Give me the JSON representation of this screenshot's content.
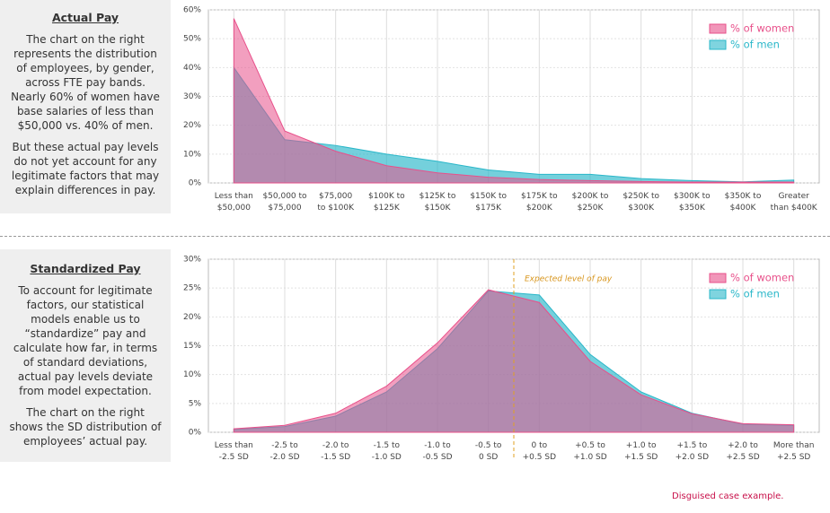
{
  "panels": [
    {
      "title": "Actual Pay",
      "paragraphs": [
        "The chart on the right represents the distribution of employees, by gender, across FTE pay bands. Nearly 60% of women have base salaries of less than $50,000 vs. 40% of men.",
        "But these actual pay levels do not yet account for any legitimate factors that may explain differences in pay."
      ]
    },
    {
      "title": "Standardized Pay",
      "paragraphs": [
        "To account for legitimate factors, our statistical models enable us to “standardize” pay and calculate how far, in terms of standard deviations, actual pay levels deviate from model expectation.",
        "The chart on the right shows the SD distribution of employees’ actual pay."
      ]
    }
  ],
  "chart_data": [
    {
      "type": "area",
      "categories": [
        [
          "Less than",
          "$50,000"
        ],
        [
          "$50,000 to",
          "$75,000"
        ],
        [
          "$75,000",
          "to $100K"
        ],
        [
          "$100K to",
          "$125K"
        ],
        [
          "$125K to",
          "$150K"
        ],
        [
          "$150K to",
          "$175K"
        ],
        [
          "$175K to",
          "$200K"
        ],
        [
          "$200K to",
          "$250K"
        ],
        [
          "$250K to",
          "$300K"
        ],
        [
          "$300K to",
          "$350K"
        ],
        [
          "$350K to",
          "$400K"
        ],
        [
          "Greater",
          "than $400K"
        ]
      ],
      "series": [
        {
          "name": "% of women",
          "color": "#e8508a",
          "values": [
            57,
            18,
            11,
            6,
            3.5,
            2,
            1.2,
            0.8,
            0.5,
            0.3,
            0.3,
            0.3
          ]
        },
        {
          "name": "% of men",
          "color": "#2ab7c9",
          "values": [
            40,
            15,
            13,
            10,
            7.5,
            4.5,
            3,
            3,
            1.5,
            0.8,
            0.4,
            1
          ]
        }
      ],
      "ylim": [
        0,
        60
      ],
      "yticks": [
        {
          "value": 0,
          "label": "0%"
        },
        {
          "value": 10,
          "label": "10%"
        },
        {
          "value": 20,
          "label": "20%"
        },
        {
          "value": 30,
          "label": "30%"
        },
        {
          "value": 40,
          "label": "40%"
        },
        {
          "value": 50,
          "label": "50%"
        },
        {
          "value": 60,
          "label": "60%"
        }
      ],
      "grid": true,
      "legend": "upper right"
    },
    {
      "type": "area",
      "categories": [
        [
          "Less than",
          "-2.5 SD"
        ],
        [
          "-2.5 to",
          "-2.0 SD"
        ],
        [
          "-2.0 to",
          "-1.5 SD"
        ],
        [
          "-1.5 to",
          "-1.0 SD"
        ],
        [
          "-1.0 to",
          "-0.5 SD"
        ],
        [
          "-0.5 to",
          "0 SD"
        ],
        [
          "0 to",
          "+0.5 SD"
        ],
        [
          "+0.5 to",
          "+1.0 SD"
        ],
        [
          "+1.0 to",
          "+1.5 SD"
        ],
        [
          "+1.5 to",
          "+2.0 SD"
        ],
        [
          "+2.0 to",
          "+2.5 SD"
        ],
        [
          "More than",
          "+2.5 SD"
        ]
      ],
      "series": [
        {
          "name": "% of women",
          "color": "#e8508a",
          "values": [
            0.6,
            1.2,
            3.3,
            8,
            15.5,
            24.7,
            22.5,
            12.3,
            6.5,
            3.2,
            1.5,
            1.3
          ]
        },
        {
          "name": "% of men",
          "color": "#2ab7c9",
          "values": [
            0.5,
            1.0,
            2.8,
            7,
            14.5,
            24.5,
            23.8,
            13.5,
            7,
            3.3,
            1.4,
            1.2
          ]
        }
      ],
      "ylim": [
        0,
        30
      ],
      "yticks": [
        {
          "value": 0,
          "label": "0%"
        },
        {
          "value": 5,
          "label": "5%"
        },
        {
          "value": 10,
          "label": "10%"
        },
        {
          "value": 15,
          "label": "15%"
        },
        {
          "value": 20,
          "label": "20%"
        },
        {
          "value": 25,
          "label": "25%"
        },
        {
          "value": 30,
          "label": "30%"
        }
      ],
      "grid": true,
      "legend": "upper right",
      "annotation": "Expected level of pay"
    }
  ],
  "footnote": "Disguised case example."
}
